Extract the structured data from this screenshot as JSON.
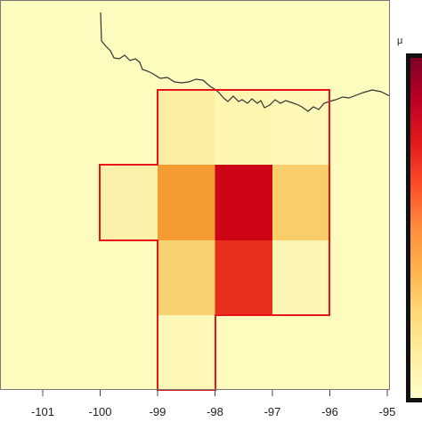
{
  "x_axis": {
    "ticks": [
      {
        "value": -101,
        "label": "-101"
      },
      {
        "value": -100,
        "label": "-100"
      },
      {
        "value": -99,
        "label": "-99"
      },
      {
        "value": -98,
        "label": "-98"
      },
      {
        "value": -97,
        "label": "-97"
      },
      {
        "value": -96,
        "label": "-96"
      },
      {
        "value": -95,
        "label": "-95"
      }
    ]
  },
  "legend": {
    "unit_label": "μ",
    "colors": [
      "#800026",
      "#bd0026",
      "#e31a1c",
      "#fc4e2a",
      "#fd8d3c",
      "#feb24c",
      "#fed976",
      "#ffeda0",
      "#ffffcc"
    ]
  },
  "colors": {
    "background": "#fdfbbe",
    "outline": "#e8141c",
    "border_line": "#333333"
  },
  "grid_cells": [
    {
      "lon_min": -99,
      "lon_max": -98,
      "row": 1,
      "color": "#fbeea2"
    },
    {
      "lon_min": -98,
      "lon_max": -97,
      "row": 1,
      "color": "#fcf6b0"
    },
    {
      "lon_min": -97,
      "lon_max": -96,
      "row": 1,
      "color": "#fdf8b8"
    },
    {
      "lon_min": -100,
      "lon_max": -99,
      "row": 2,
      "color": "#fcf1ab"
    },
    {
      "lon_min": -99,
      "lon_max": -98,
      "row": 2,
      "color": "#f59b32"
    },
    {
      "lon_min": -98,
      "lon_max": -97,
      "row": 2,
      "color": "#cc0416"
    },
    {
      "lon_min": -97,
      "lon_max": -96,
      "row": 2,
      "color": "#f8cd6a"
    },
    {
      "lon_min": -99,
      "lon_max": -98,
      "row": 3,
      "color": "#f8d270"
    },
    {
      "lon_min": -98,
      "lon_max": -97,
      "row": 3,
      "color": "#e8311c"
    },
    {
      "lon_min": -97,
      "lon_max": -96,
      "row": 3,
      "color": "#fcf6b4"
    },
    {
      "lon_min": -99,
      "lon_max": -98,
      "row": 4,
      "color": "#fdf8b8"
    }
  ]
}
